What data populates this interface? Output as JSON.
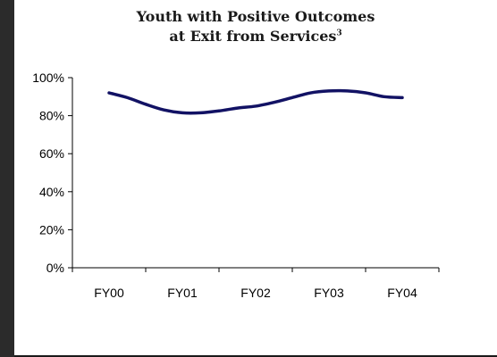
{
  "chart_data": {
    "type": "line",
    "title": "Youth with Positive Outcomes",
    "subtitle": "at Exit from Services",
    "footnote_marker": "3",
    "categories": [
      "FY00",
      "FY01",
      "FY02",
      "FY03",
      "FY04"
    ],
    "x": [
      0,
      0.25,
      0.5,
      0.75,
      1,
      1.25,
      1.5,
      1.75,
      2,
      2.25,
      2.5,
      2.75,
      3,
      3.25,
      3.5,
      3.75,
      4
    ],
    "series": [
      {
        "values": [
          92,
          89.5,
          86,
          83,
          81.5,
          81.5,
          82.5,
          84,
          85,
          87,
          89.5,
          92,
          93,
          93,
          92,
          90,
          89.5
        ],
        "color": "#121264"
      }
    ],
    "yticks": [
      "0%",
      "20%",
      "40%",
      "60%",
      "80%",
      "100%"
    ],
    "ylim": [
      0,
      100
    ],
    "grid": false,
    "legend": "none"
  }
}
